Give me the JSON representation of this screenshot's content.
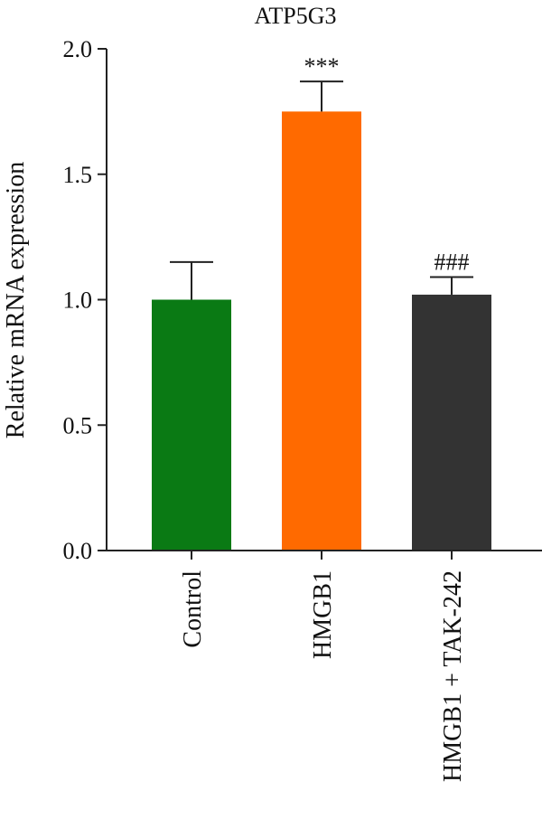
{
  "chart_data": {
    "type": "bar",
    "title": "ATP5G3",
    "ylabel": "Relative mRNA expression",
    "xlabel": "",
    "ylim": [
      0,
      2.0
    ],
    "yticks": [
      0.0,
      0.5,
      1.0,
      1.5,
      2.0
    ],
    "ytick_labels": [
      "0.0",
      "0.5",
      "1.0",
      "1.5",
      "2.0"
    ],
    "categories": [
      "Control",
      "HMGB1",
      "HMGB1 + TAK-242"
    ],
    "values": [
      1.0,
      1.75,
      1.02
    ],
    "errors": [
      0.15,
      0.12,
      0.07
    ],
    "colors": [
      "#0a7a14",
      "#ff6a00",
      "#333333"
    ],
    "significance": [
      "",
      "***",
      "###"
    ],
    "grid": false,
    "legend": "none"
  }
}
